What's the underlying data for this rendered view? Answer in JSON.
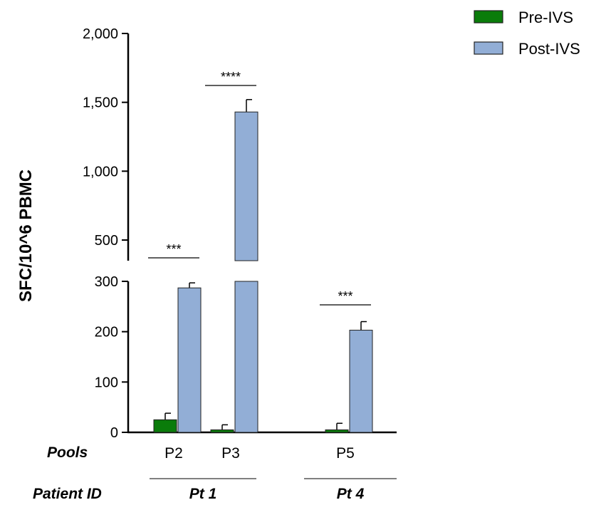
{
  "chart_data": {
    "type": "bar",
    "ylabel": "SFC/10^6 PBMC",
    "y_axis_broken": true,
    "y_lower_range": [
      0,
      300
    ],
    "y_upper_range": [
      300,
      2000
    ],
    "y_lower_ticks": [
      "0",
      "100",
      "200",
      "300"
    ],
    "y_upper_ticks": [
      "500",
      "1,000",
      "1,500",
      "2,000"
    ],
    "y_lower_tick_values": [
      0,
      100,
      200,
      300
    ],
    "y_upper_tick_values": [
      500,
      1000,
      1500,
      2000
    ],
    "row_labels": {
      "pools": "Pools",
      "patient": "Patient  ID"
    },
    "categories": [
      "P2",
      "P3",
      "P5"
    ],
    "groups": [
      {
        "label": "Pt 1",
        "categories": [
          "P2",
          "P3"
        ]
      },
      {
        "label": "Pt 4",
        "categories": [
          "P5"
        ]
      }
    ],
    "series": [
      {
        "name": "Pre-IVS",
        "color": "#0a7c0a",
        "values": [
          25,
          5,
          5
        ],
        "errors": [
          13,
          10,
          13
        ]
      },
      {
        "name": "Post-IVS",
        "color": "#92aed6",
        "values": [
          287,
          1430,
          203
        ],
        "errors": [
          10,
          90,
          17
        ]
      }
    ],
    "significance": [
      {
        "category": "P2",
        "label": "***"
      },
      {
        "category": "P3",
        "label": "****"
      },
      {
        "category": "P5",
        "label": "***"
      }
    ],
    "legend_position": "top-right",
    "grid": false
  }
}
